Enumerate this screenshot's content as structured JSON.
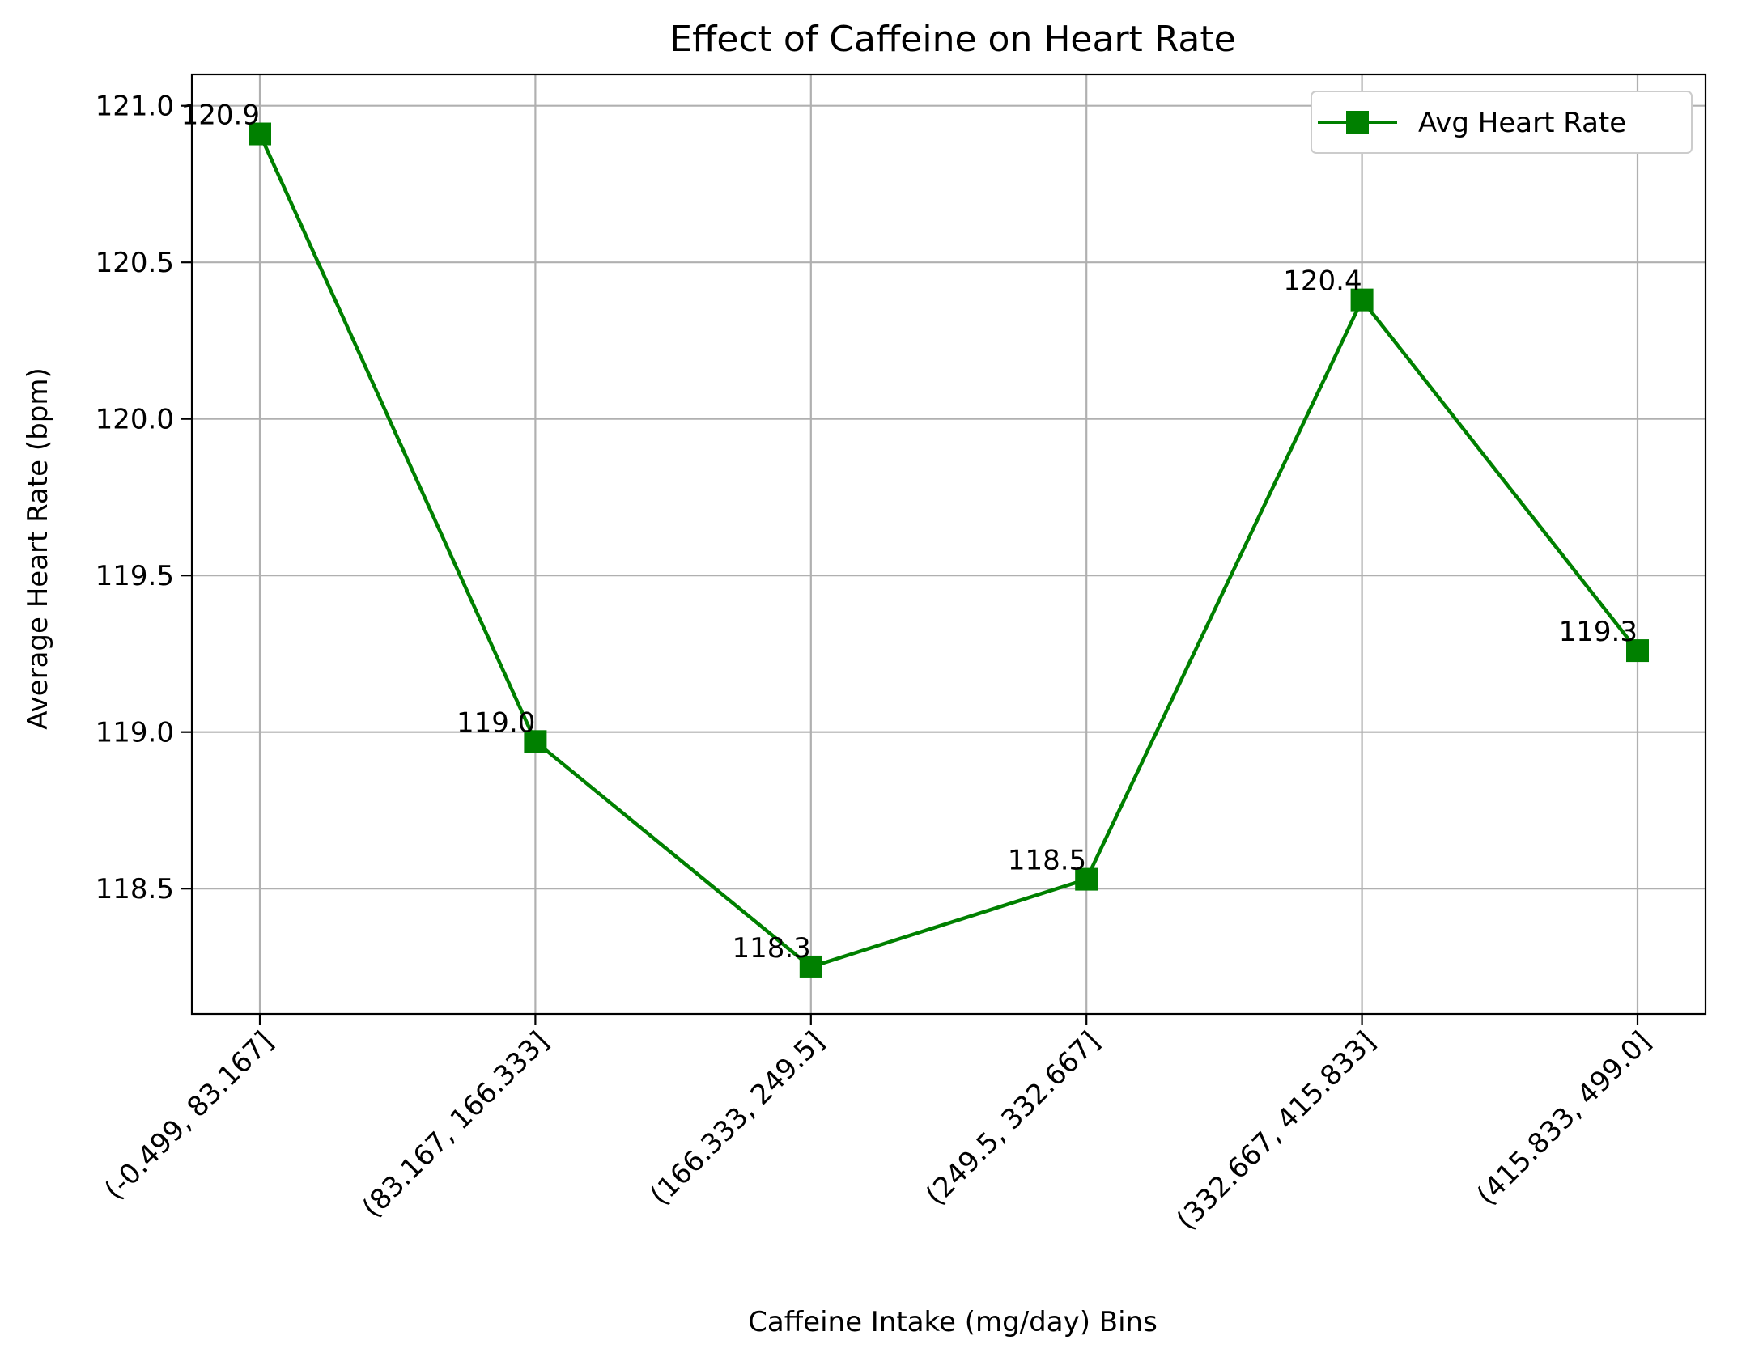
{
  "chart_data": {
    "type": "line",
    "title": "Effect of Caffeine on Heart Rate",
    "xlabel": "Caffeine Intake (mg/day) Bins",
    "ylabel": "Average Heart Rate (bpm)",
    "categories": [
      "(-0.499, 83.167]",
      "(83.167, 166.333]",
      "(166.333, 249.5]",
      "(249.5, 332.667]",
      "(332.667, 415.833]",
      "(415.833, 499.0]"
    ],
    "series": [
      {
        "name": "Avg Heart Rate",
        "values": [
          120.91,
          118.97,
          118.25,
          118.53,
          120.38,
          119.26
        ],
        "data_labels": [
          "120.9",
          "119.0",
          "118.3",
          "118.5",
          "120.4",
          "119.3"
        ],
        "color": "#008000",
        "marker": "square"
      }
    ],
    "yticks": [
      118.5,
      119.0,
      119.5,
      120.0,
      120.5,
      121.0
    ],
    "ytick_labels": [
      "118.5",
      "119.0",
      "119.5",
      "120.0",
      "120.5",
      "121.0"
    ],
    "ylim": [
      118.1,
      121.1
    ],
    "grid": true,
    "legend_position": "top-right",
    "xtick_rotation": 45
  }
}
